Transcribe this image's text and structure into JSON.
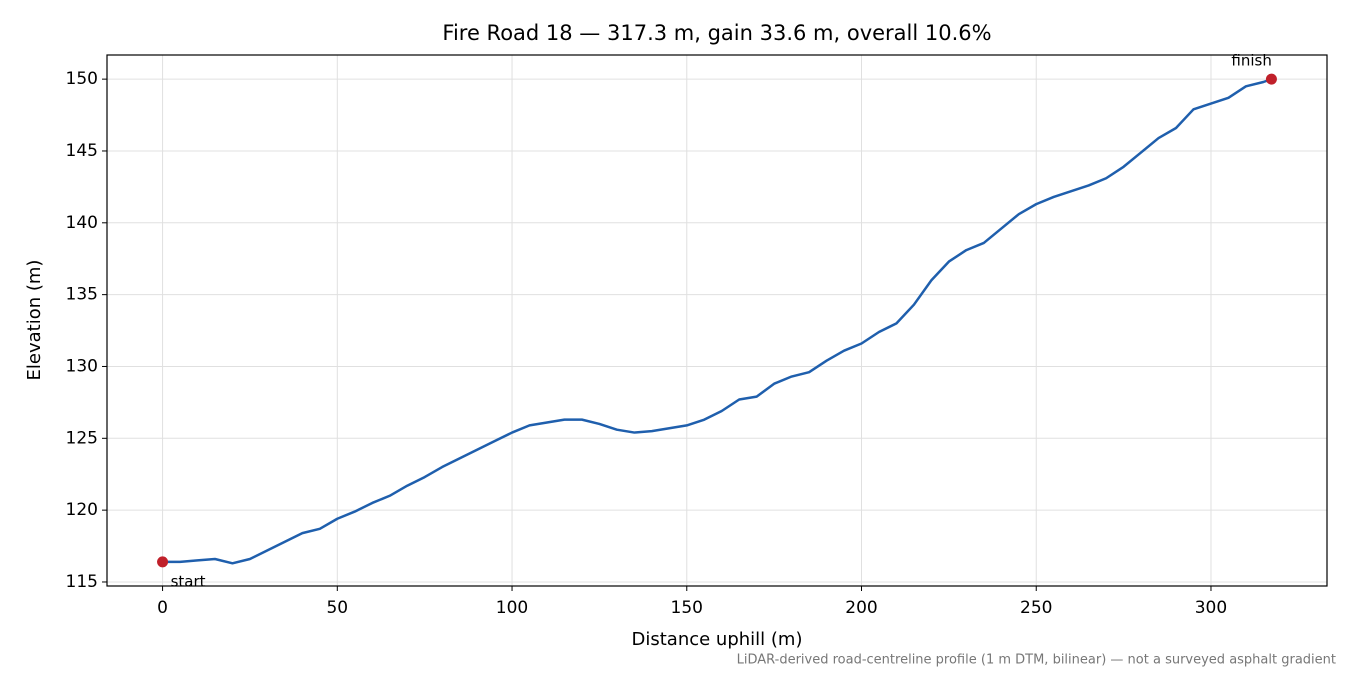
{
  "chart_data": {
    "type": "line",
    "title": "Fire Road 18 — 317.3 m, gain 33.6 m, overall 10.6%",
    "x_label": "Distance uphill (m)",
    "y_label": "Elevation (m)",
    "footnote": "LiDAR-derived road-centreline profile (1 m DTM, bilinear) — not a surveyed asphalt gradient",
    "x": [
      0,
      5,
      10,
      15,
      20,
      25,
      30,
      35,
      40,
      45,
      50,
      55,
      60,
      65,
      70,
      75,
      80,
      85,
      90,
      95,
      100,
      105,
      110,
      115,
      120,
      125,
      130,
      135,
      140,
      145,
      150,
      155,
      160,
      165,
      170,
      175,
      180,
      185,
      190,
      195,
      200,
      205,
      210,
      215,
      220,
      225,
      230,
      235,
      240,
      245,
      250,
      255,
      260,
      265,
      270,
      275,
      280,
      285,
      290,
      295,
      300,
      305,
      310,
      315,
      317.3
    ],
    "series": [
      {
        "color": "#1f5fad",
        "values": [
          116.4,
          116.4,
          116.5,
          116.6,
          116.3,
          116.6,
          117.2,
          117.8,
          118.4,
          118.7,
          119.4,
          119.9,
          120.5,
          121.0,
          121.7,
          122.3,
          123.0,
          123.6,
          124.2,
          124.8,
          125.4,
          125.9,
          126.1,
          126.3,
          126.3,
          126.0,
          125.6,
          125.4,
          125.5,
          125.7,
          125.9,
          126.3,
          126.9,
          127.7,
          127.9,
          128.8,
          129.3,
          129.6,
          130.4,
          131.1,
          131.6,
          132.4,
          133.0,
          134.3,
          136.0,
          137.3,
          138.1,
          138.6,
          139.6,
          140.6,
          141.3,
          141.8,
          142.2,
          142.6,
          143.1,
          143.9,
          144.9,
          145.9,
          146.6,
          147.9,
          148.3,
          148.7,
          149.5,
          149.8,
          150.0
        ]
      }
    ],
    "endpoint_color": "#c0202a",
    "annotations": [
      "start",
      "finish"
    ],
    "xlim": [
      -15.9,
      333.2
    ],
    "ylim": [
      114.72,
      151.68
    ],
    "xticks": [
      0,
      50,
      100,
      150,
      200,
      250,
      300
    ],
    "yticks": [
      115,
      120,
      125,
      130,
      135,
      140,
      145,
      150
    ],
    "grid": true
  }
}
